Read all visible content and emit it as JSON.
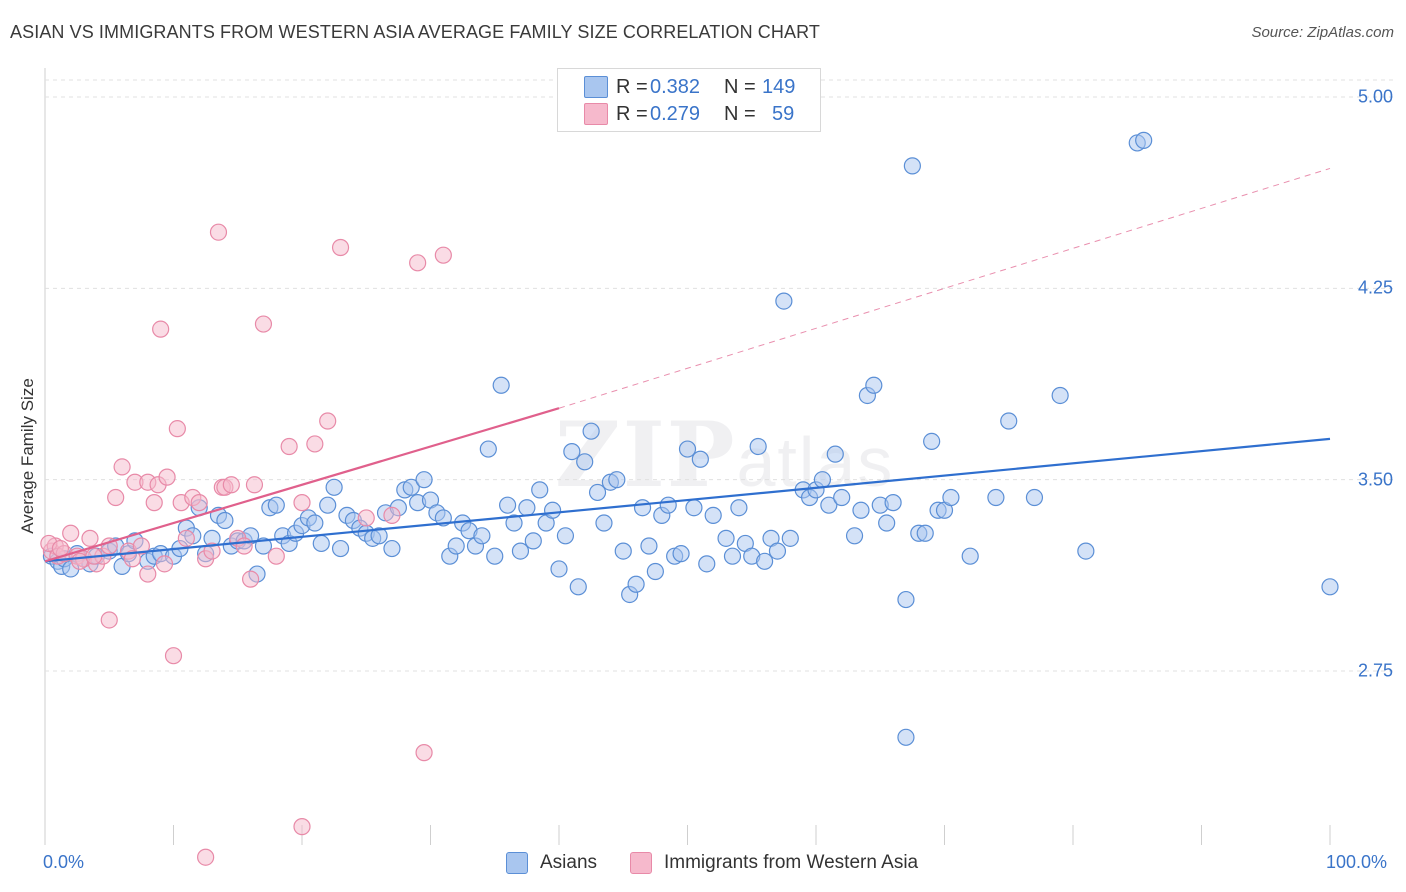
{
  "header": {
    "title": "ASIAN VS IMMIGRANTS FROM WESTERN ASIA AVERAGE FAMILY SIZE CORRELATION CHART",
    "source": "Source: ZipAtlas.com"
  },
  "legend": {
    "r_label": "R =",
    "n_label": "N =",
    "rows": [
      {
        "r": "0.382",
        "n": "149",
        "color": "#a9c6ef"
      },
      {
        "r": "0.279",
        "n": "59",
        "color": "#f6b9cc"
      }
    ]
  },
  "watermark": {
    "zip": "ZIP",
    "atlas": "atlas"
  },
  "chart_data": {
    "type": "scatter",
    "ylabel": "Average Family Size",
    "xlim": [
      0,
      100
    ],
    "ylim": [
      2.0,
      5.08
    ],
    "x_tick_labels": {
      "left": "0.0%",
      "right": "100.0%"
    },
    "y_ticks": [
      {
        "value": 5.0,
        "label": "5.00"
      },
      {
        "value": 4.25,
        "label": "4.25"
      },
      {
        "value": 3.5,
        "label": "3.50"
      },
      {
        "value": 2.75,
        "label": "2.75"
      }
    ],
    "grid": "horizontal dashed",
    "series": [
      {
        "name": "Asians",
        "color": "#5b8fd6",
        "fill": "#a9c6ef",
        "trend": {
          "x0": 0,
          "y0": 3.18,
          "x1": 100,
          "y1": 3.66,
          "color": "#2f6fcf"
        },
        "points": [
          [
            0.5,
            3.2
          ],
          [
            1,
            3.18
          ],
          [
            1.3,
            3.16
          ],
          [
            1.5,
            3.19
          ],
          [
            2,
            3.15
          ],
          [
            2.5,
            3.21
          ],
          [
            3,
            3.19
          ],
          [
            3.5,
            3.17
          ],
          [
            4,
            3.2
          ],
          [
            5,
            3.22
          ],
          [
            5.5,
            3.24
          ],
          [
            6,
            3.16
          ],
          [
            6.5,
            3.21
          ],
          [
            7,
            3.26
          ],
          [
            8,
            3.18
          ],
          [
            8.5,
            3.2
          ],
          [
            9,
            3.21
          ],
          [
            10,
            3.2
          ],
          [
            10.5,
            3.23
          ],
          [
            11,
            3.31
          ],
          [
            11.5,
            3.28
          ],
          [
            12,
            3.39
          ],
          [
            12.5,
            3.21
          ],
          [
            13,
            3.27
          ],
          [
            13.5,
            3.36
          ],
          [
            14,
            3.34
          ],
          [
            14.5,
            3.24
          ],
          [
            15,
            3.26
          ],
          [
            15.5,
            3.26
          ],
          [
            16,
            3.28
          ],
          [
            16.5,
            3.13
          ],
          [
            17,
            3.24
          ],
          [
            17.5,
            3.39
          ],
          [
            18,
            3.4
          ],
          [
            18.5,
            3.28
          ],
          [
            19,
            3.25
          ],
          [
            19.5,
            3.29
          ],
          [
            20,
            3.32
          ],
          [
            20.5,
            3.35
          ],
          [
            21,
            3.33
          ],
          [
            21.5,
            3.25
          ],
          [
            22,
            3.4
          ],
          [
            22.5,
            3.47
          ],
          [
            23,
            3.23
          ],
          [
            23.5,
            3.36
          ],
          [
            24,
            3.34
          ],
          [
            24.5,
            3.31
          ],
          [
            25,
            3.29
          ],
          [
            25.5,
            3.27
          ],
          [
            26,
            3.28
          ],
          [
            26.5,
            3.37
          ],
          [
            27,
            3.23
          ],
          [
            27.5,
            3.39
          ],
          [
            28,
            3.46
          ],
          [
            28.5,
            3.47
          ],
          [
            29,
            3.41
          ],
          [
            29.5,
            3.5
          ],
          [
            30,
            3.42
          ],
          [
            30.5,
            3.37
          ],
          [
            31,
            3.35
          ],
          [
            31.5,
            3.2
          ],
          [
            32,
            3.24
          ],
          [
            32.5,
            3.33
          ],
          [
            33,
            3.3
          ],
          [
            33.5,
            3.24
          ],
          [
            34,
            3.28
          ],
          [
            34.5,
            3.62
          ],
          [
            35,
            3.2
          ],
          [
            35.5,
            3.87
          ],
          [
            36,
            3.4
          ],
          [
            36.5,
            3.33
          ],
          [
            37,
            3.22
          ],
          [
            37.5,
            3.39
          ],
          [
            38,
            3.26
          ],
          [
            38.5,
            3.46
          ],
          [
            39,
            3.33
          ],
          [
            39.5,
            3.38
          ],
          [
            40,
            3.15
          ],
          [
            40.5,
            3.28
          ],
          [
            41,
            3.61
          ],
          [
            41.5,
            3.08
          ],
          [
            42,
            3.57
          ],
          [
            42.5,
            3.69
          ],
          [
            43,
            3.45
          ],
          [
            43.5,
            3.33
          ],
          [
            44,
            3.49
          ],
          [
            44.5,
            3.5
          ],
          [
            45,
            3.22
          ],
          [
            45.5,
            3.05
          ],
          [
            46,
            3.09
          ],
          [
            46.5,
            3.39
          ],
          [
            47,
            3.24
          ],
          [
            47.5,
            3.14
          ],
          [
            48,
            3.36
          ],
          [
            48.5,
            3.4
          ],
          [
            49,
            3.2
          ],
          [
            49.5,
            3.21
          ],
          [
            50,
            3.62
          ],
          [
            50.5,
            3.39
          ],
          [
            51,
            3.58
          ],
          [
            51.5,
            3.17
          ],
          [
            52,
            3.36
          ],
          [
            53,
            3.27
          ],
          [
            53.5,
            3.2
          ],
          [
            54,
            3.39
          ],
          [
            54.5,
            3.25
          ],
          [
            55,
            3.2
          ],
          [
            55.5,
            3.63
          ],
          [
            56,
            3.18
          ],
          [
            56.5,
            3.27
          ],
          [
            57,
            3.22
          ],
          [
            57.5,
            4.2
          ],
          [
            58,
            3.27
          ],
          [
            59,
            3.46
          ],
          [
            59.5,
            3.43
          ],
          [
            60,
            3.46
          ],
          [
            60.5,
            3.5
          ],
          [
            61,
            3.4
          ],
          [
            61.5,
            3.6
          ],
          [
            62,
            3.43
          ],
          [
            63,
            3.28
          ],
          [
            63.5,
            3.38
          ],
          [
            64,
            3.83
          ],
          [
            64.5,
            3.87
          ],
          [
            65,
            3.4
          ],
          [
            65.5,
            3.33
          ],
          [
            66,
            3.41
          ],
          [
            67,
            3.03
          ],
          [
            67,
            2.49
          ],
          [
            67.5,
            4.73
          ],
          [
            68,
            3.29
          ],
          [
            68.5,
            3.29
          ],
          [
            69,
            3.65
          ],
          [
            69.5,
            3.38
          ],
          [
            70,
            3.38
          ],
          [
            70.5,
            3.43
          ],
          [
            72,
            3.2
          ],
          [
            74,
            3.43
          ],
          [
            75,
            3.73
          ],
          [
            77,
            3.43
          ],
          [
            79,
            3.83
          ],
          [
            81,
            3.22
          ],
          [
            85,
            4.82
          ],
          [
            85.5,
            4.83
          ],
          [
            100,
            3.08
          ]
        ]
      },
      {
        "name": "Immigrants from Western Asia",
        "color": "#e88aa8",
        "fill": "#f6b9cc",
        "trend": {
          "x0": 0,
          "y0": 3.18,
          "x1": 40,
          "y1": 3.78,
          "x_dash_end": 100,
          "y_dash_end": 4.72,
          "color": "#e0608c"
        },
        "points": [
          [
            0.5,
            3.22
          ],
          [
            0.8,
            3.24
          ],
          [
            1,
            3.2
          ],
          [
            1.5,
            3.21
          ],
          [
            2,
            3.29
          ],
          [
            2.5,
            3.2
          ],
          [
            3,
            3.19
          ],
          [
            3.5,
            3.27
          ],
          [
            4,
            3.17
          ],
          [
            4.5,
            3.2
          ],
          [
            5,
            3.24
          ],
          [
            5,
            2.95
          ],
          [
            5.5,
            3.43
          ],
          [
            6,
            3.55
          ],
          [
            6.5,
            3.22
          ],
          [
            7,
            3.49
          ],
          [
            7.5,
            3.24
          ],
          [
            8,
            3.49
          ],
          [
            8,
            3.13
          ],
          [
            8.5,
            3.41
          ],
          [
            8.8,
            3.48
          ],
          [
            9,
            4.09
          ],
          [
            9.5,
            3.51
          ],
          [
            10,
            2.81
          ],
          [
            10.3,
            3.7
          ],
          [
            10.6,
            3.41
          ],
          [
            11,
            3.27
          ],
          [
            11.5,
            3.43
          ],
          [
            12,
            3.41
          ],
          [
            12.5,
            3.19
          ],
          [
            13,
            3.22
          ],
          [
            13.5,
            4.47
          ],
          [
            13.8,
            3.47
          ],
          [
            14,
            3.47
          ],
          [
            14.5,
            3.48
          ],
          [
            15,
            3.27
          ],
          [
            15.5,
            3.24
          ],
          [
            16,
            3.11
          ],
          [
            16.3,
            3.48
          ],
          [
            17,
            4.11
          ],
          [
            18,
            3.2
          ],
          [
            19,
            3.63
          ],
          [
            20,
            3.41
          ],
          [
            21,
            3.64
          ],
          [
            22,
            3.73
          ],
          [
            23,
            4.41
          ],
          [
            25,
            3.35
          ],
          [
            27,
            3.36
          ],
          [
            29,
            4.35
          ],
          [
            29.5,
            2.43
          ],
          [
            31,
            4.38
          ],
          [
            20,
            2.14
          ],
          [
            12.5,
            2.02
          ],
          [
            0.3,
            3.25
          ],
          [
            1.2,
            3.23
          ],
          [
            2.7,
            3.18
          ],
          [
            3.8,
            3.2
          ],
          [
            6.8,
            3.19
          ],
          [
            9.3,
            3.17
          ]
        ]
      }
    ]
  },
  "bottom_legend": [
    {
      "label": "Asians",
      "color": "#a9c6ef",
      "border": "#5b8fd6"
    },
    {
      "label": "Immigrants from Western Asia",
      "color": "#f6b9cc",
      "border": "#e88aa8"
    }
  ]
}
